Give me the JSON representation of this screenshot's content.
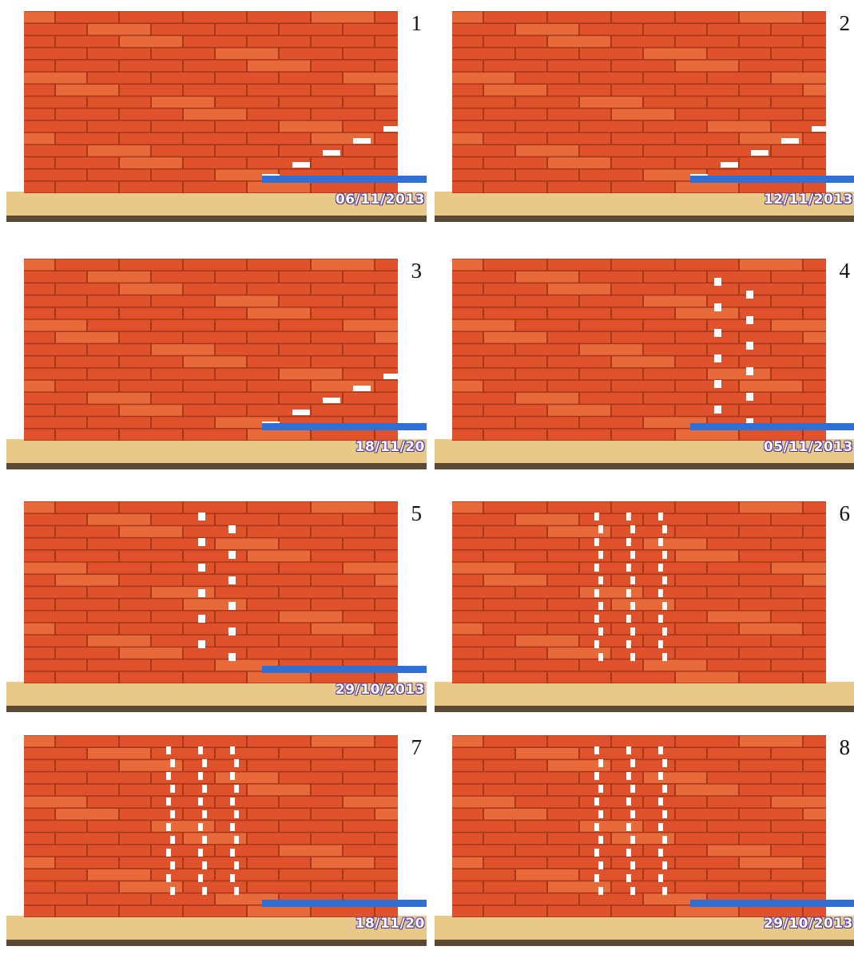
{
  "figure": {
    "panels": [
      {
        "number": "1",
        "date": "06/11/2013",
        "pattern": "diag-lr"
      },
      {
        "number": "2",
        "date": "12/11/2013",
        "pattern": "diag-lr-right"
      },
      {
        "number": "3",
        "date": "18/11/20",
        "pattern": "diag-lr"
      },
      {
        "number": "4",
        "date": "05/11/2013",
        "pattern": "vertical-right"
      },
      {
        "number": "5",
        "date": "29/10/2013",
        "pattern": "vertical-center"
      },
      {
        "number": "6",
        "date": "",
        "pattern": "vertical-three"
      },
      {
        "number": "7",
        "date": "18/11/20",
        "pattern": "vertical-three"
      },
      {
        "number": "8",
        "date": "29/10/2013",
        "pattern": "vertical-three-stair"
      }
    ],
    "colors": {
      "brick": "#e0522b",
      "brick_light": "#e86a3a",
      "mortar": "#a8381a",
      "base": "#e8c98a",
      "shelf": "#5a4a35",
      "support_bar": "#2f6fd6"
    }
  }
}
